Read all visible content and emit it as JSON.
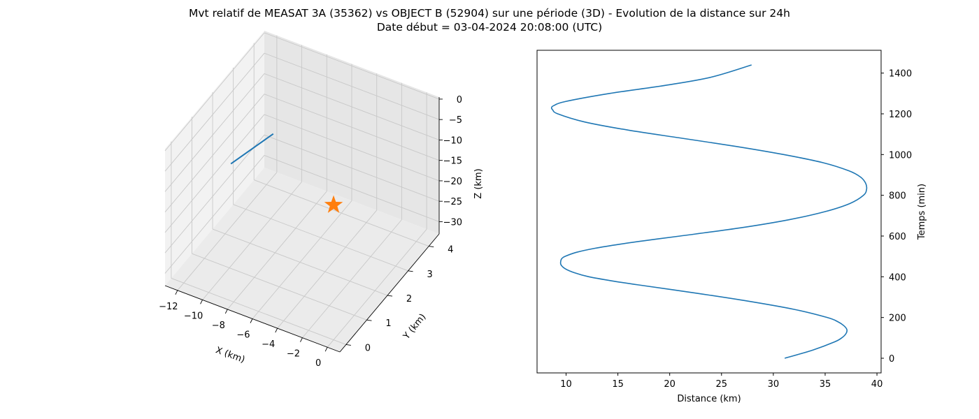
{
  "figure": {
    "title_line1": "Mvt relatif de MEASAT 3A (35362) vs OBJECT B (52904) sur une période (3D) - Evolution de la distance sur 24h",
    "title_line2": "Date début = 03-04-2024 20:08:00 (UTC)"
  },
  "colors": {
    "series": "#1f77b4",
    "marker": "#ff7f0e",
    "pane_left": "#f2f2f2",
    "pane_back": "#e6e6e6",
    "pane_floor": "#ebebeb",
    "grid": "#c8c8c8"
  },
  "chart_data": [
    {
      "type": "line",
      "projection": "3d",
      "xlabel": "X (km)",
      "ylabel": "Y (km)",
      "zlabel": "Z (km)",
      "xlim": [
        -13,
        1
      ],
      "ylim": [
        -0.3,
        4.5
      ],
      "zlim": [
        -33,
        0.5
      ],
      "x_ticks": [
        -12,
        -10,
        -8,
        -6,
        -4,
        -2,
        0
      ],
      "y_ticks": [
        0,
        1,
        2,
        3,
        4
      ],
      "z_ticks": [
        0,
        -5,
        -10,
        -15,
        -20,
        -25,
        -30
      ],
      "grid": true,
      "series": [
        {
          "type": "line",
          "x": [
            -12.2,
            -9.8
          ],
          "y": [
            2.4,
            3.0
          ],
          "z": [
            -18.5,
            -12.0
          ]
        }
      ],
      "markers": [
        {
          "shape": "star",
          "x": 0,
          "y": 0,
          "z": 0
        }
      ]
    },
    {
      "type": "line",
      "xlabel": "Distance (km)",
      "ylabel": "Temps (min)",
      "xlim": [
        7.2,
        40.4
      ],
      "ylim": [
        -72,
        1512
      ],
      "x_ticks": [
        10,
        15,
        20,
        25,
        30,
        35,
        40
      ],
      "y_ticks": [
        0,
        200,
        400,
        600,
        800,
        1000,
        1200,
        1400
      ],
      "yaxis_side": "right",
      "grid": false,
      "series": [
        {
          "t": [
            0,
            40,
            80,
            100,
            120,
            140,
            160,
            180,
            200,
            240,
            280,
            320,
            360,
            380,
            400,
            420,
            440,
            460,
            480,
            490,
            500,
            520,
            540,
            560,
            580,
            600,
            640,
            680,
            720,
            760,
            800,
            830,
            860,
            890,
            920,
            960,
            1000,
            1040,
            1080,
            1120,
            1160,
            1200,
            1220,
            1230,
            1240,
            1260,
            1300,
            1340,
            1380,
            1440
          ],
          "distance": [
            31.1,
            33.8,
            35.9,
            36.6,
            37.0,
            37.1,
            36.8,
            36.2,
            35.2,
            32.0,
            27.6,
            22.5,
            17.0,
            14.4,
            12.2,
            10.8,
            9.9,
            9.5,
            9.5,
            9.6,
            9.9,
            11.0,
            12.8,
            15.2,
            18.0,
            21.0,
            26.8,
            31.5,
            35.0,
            37.4,
            38.7,
            39.0,
            38.9,
            38.4,
            37.3,
            34.8,
            31.0,
            26.4,
            21.2,
            16.0,
            11.8,
            9.2,
            8.7,
            8.6,
            8.8,
            9.9,
            14.2,
            19.6,
            24.0,
            27.9
          ]
        }
      ]
    }
  ]
}
